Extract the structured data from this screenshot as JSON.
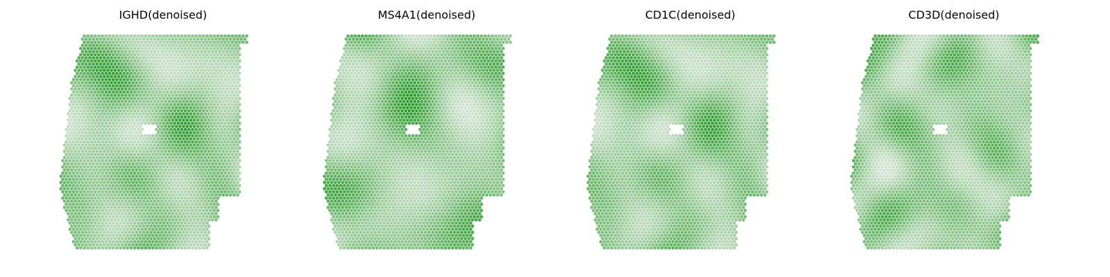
{
  "chart_data": [
    {
      "type": "heatmap",
      "title": "IGHD(denoised)",
      "colormap": [
        "#ffffff",
        "#008c00"
      ],
      "axes_visible": false,
      "grid": false,
      "legend": "none"
    },
    {
      "type": "heatmap",
      "title": "MS4A1(denoised)",
      "colormap": [
        "#ffffff",
        "#008c00"
      ],
      "axes_visible": false,
      "grid": false,
      "legend": "none"
    },
    {
      "type": "heatmap",
      "title": "CD1C(denoised)",
      "colormap": [
        "#ffffff",
        "#008c00"
      ],
      "axes_visible": false,
      "grid": false,
      "legend": "none"
    },
    {
      "type": "heatmap",
      "title": "CD3D(denoised)",
      "colormap": [
        "#ffffff",
        "#008c00"
      ],
      "axes_visible": false,
      "grid": false,
      "legend": "none"
    }
  ]
}
